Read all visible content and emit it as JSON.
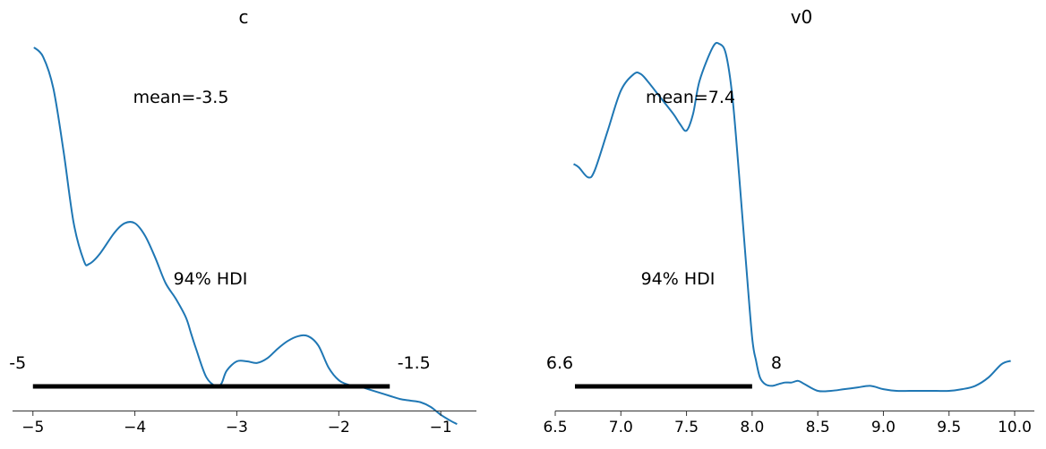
{
  "chart_data": [
    {
      "type": "line",
      "title": "c",
      "xlabel": "",
      "ylabel": "",
      "xlim": [
        -5.2,
        -0.65
      ],
      "xticks": [
        -5,
        -4,
        -3,
        -2,
        -1
      ],
      "xtick_labels": [
        "−5",
        "−4",
        "−3",
        "−2",
        "−1"
      ],
      "yticks_visible": false,
      "grid": false,
      "color": "#1f77b4",
      "series": [
        {
          "x": [
            -4.99,
            -4.9,
            -4.8,
            -4.7,
            -4.6,
            -4.5,
            -4.45,
            -4.35,
            -4.2,
            -4.1,
            -4.0,
            -3.9,
            -3.8,
            -3.7,
            -3.6,
            -3.5,
            -3.45,
            -3.4,
            -3.3,
            -3.2,
            -3.15,
            -3.1,
            -3.0,
            -2.9,
            -2.8,
            -2.7,
            -2.6,
            -2.5,
            -2.4,
            -2.3,
            -2.2,
            -2.1,
            -2.0,
            -1.9,
            -1.8,
            -1.7,
            -1.6,
            -1.5,
            -1.4,
            -1.3,
            -1.2,
            -1.1,
            -1.0,
            -0.9,
            -0.84
          ],
          "y": [
            1.0,
            0.97,
            0.87,
            0.67,
            0.44,
            0.32,
            0.31,
            0.34,
            0.41,
            0.44,
            0.44,
            0.4,
            0.33,
            0.25,
            0.2,
            0.14,
            0.09,
            0.04,
            -0.05,
            -0.08,
            -0.07,
            -0.03,
            0.0,
            0.0,
            -0.005,
            0.01,
            0.04,
            0.065,
            0.08,
            0.08,
            0.05,
            -0.02,
            -0.06,
            -0.075,
            -0.08,
            -0.09,
            -0.1,
            -0.11,
            -0.12,
            -0.125,
            -0.13,
            -0.145,
            -0.17,
            -0.19,
            -0.2
          ]
        }
      ],
      "hdi": {
        "low": -5,
        "high": -1.5,
        "low_label": "-5",
        "high_label": "-1.5",
        "label": "94% HDI"
      },
      "mean_label": "mean=-3.5"
    },
    {
      "type": "line",
      "title": "v0",
      "xlabel": "",
      "ylabel": "",
      "xlim": [
        6.5,
        10.15
      ],
      "xticks": [
        6.5,
        7.0,
        7.5,
        8.0,
        8.5,
        9.0,
        9.5,
        10.0
      ],
      "xtick_labels": [
        "6.5",
        "7.0",
        "7.5",
        "8.0",
        "8.5",
        "9.0",
        "9.5",
        "10.0"
      ],
      "yticks_visible": false,
      "grid": false,
      "color": "#1f77b4",
      "series": [
        {
          "x": [
            6.64,
            6.68,
            6.75,
            6.8,
            6.9,
            7.0,
            7.1,
            7.15,
            7.2,
            7.3,
            7.4,
            7.45,
            7.5,
            7.55,
            7.6,
            7.7,
            7.75,
            7.8,
            7.85,
            7.9,
            7.95,
            8.0,
            8.03,
            8.06,
            8.1,
            8.15,
            8.2,
            8.25,
            8.3,
            8.35,
            8.4,
            8.5,
            8.6,
            8.7,
            8.8,
            8.9,
            9.0,
            9.1,
            9.2,
            9.3,
            9.4,
            9.5,
            9.6,
            9.7,
            9.8,
            9.9,
            9.97
          ],
          "y": [
            0.68,
            0.67,
            0.64,
            0.66,
            0.78,
            0.9,
            0.95,
            0.95,
            0.93,
            0.88,
            0.83,
            0.8,
            0.78,
            0.83,
            0.93,
            1.03,
            1.04,
            1.01,
            0.88,
            0.65,
            0.4,
            0.16,
            0.09,
            0.04,
            0.02,
            0.015,
            0.02,
            0.025,
            0.025,
            0.03,
            0.02,
            0.0,
            0.0,
            0.005,
            0.01,
            0.015,
            0.005,
            0.0,
            0.0,
            0.0,
            0.0,
            0.0,
            0.005,
            0.015,
            0.04,
            0.08,
            0.09
          ]
        }
      ],
      "hdi": {
        "low": 6.65,
        "high": 8.0,
        "low_label": "6.6",
        "high_label": "8",
        "label": "94% HDI"
      },
      "mean_label": "mean=7.4"
    }
  ]
}
